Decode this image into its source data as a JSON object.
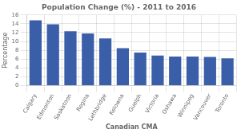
{
  "chart_data": {
    "type": "bar",
    "title": "Population Change (%) - 2011 to 2016",
    "xlabel": "Canadian CMA",
    "ylabel": "Percentage",
    "categories": [
      "Calgary",
      "Edmonton",
      "Saskatoon",
      "Regina",
      "Lethbridge",
      "Kelowna",
      "Guelph",
      "Victoria",
      "Oshawa",
      "Winnipeg",
      "Vancouver",
      "Toronto"
    ],
    "values": [
      14.8,
      13.9,
      12.3,
      11.8,
      10.7,
      8.5,
      7.5,
      6.8,
      6.6,
      6.6,
      6.5,
      6.2
    ],
    "color": "#3A5EA8",
    "ylim": [
      0,
      16
    ],
    "yticks": [
      0,
      2,
      4,
      6,
      8,
      10,
      12,
      14,
      16
    ],
    "grid": true
  }
}
